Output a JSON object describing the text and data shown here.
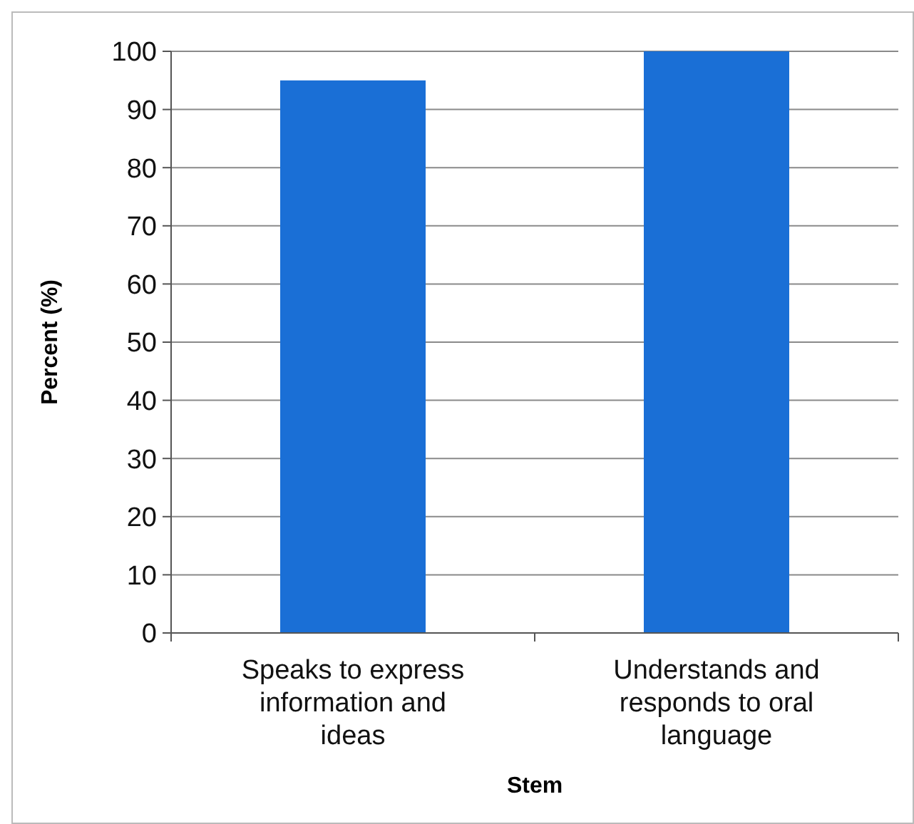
{
  "chart_data": {
    "type": "bar",
    "xlabel": "Stem",
    "ylabel": "Percent (%)",
    "categories": [
      "Speaks to express information and ideas",
      "Understands and responds to oral language"
    ],
    "values": [
      95,
      100
    ],
    "color": "#1a6fd6",
    "ylim": [
      0,
      100
    ],
    "yticks": [
      0,
      10,
      20,
      30,
      40,
      50,
      60,
      70,
      80,
      90,
      100
    ],
    "grid": "y"
  }
}
